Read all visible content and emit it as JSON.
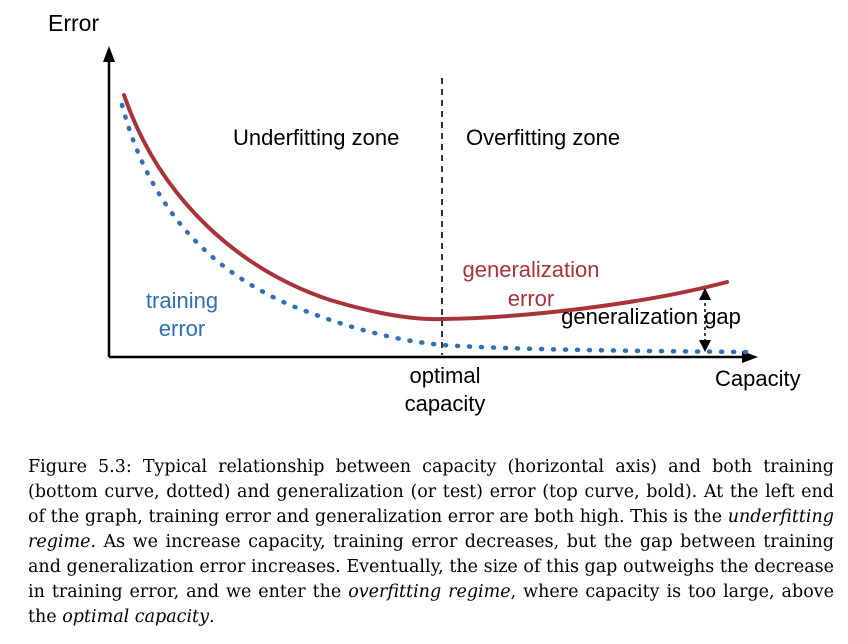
{
  "figure": {
    "y_axis_label": "Error",
    "x_axis_label": "Capacity",
    "zone_left": "Underfitting zone",
    "zone_right": "Overfitting zone",
    "training_label": [
      "training",
      "error"
    ],
    "generalization_label": [
      "generalization",
      "error"
    ],
    "gap_label": "generalization gap",
    "optimal_label": [
      "optimal",
      "capacity"
    ],
    "colors": {
      "training": "#2e6fb7",
      "generalization": "#a8343a",
      "axis": "#000000"
    }
  },
  "caption": {
    "lead": "Figure 5.3: Typical relationship between capacity (horizontal axis) and both training (bottom curve, dotted) and generalization (or test) error (top curve, bold). At the left end of the graph, training error and generalization error are both high. This is the ",
    "em1": "underfitting regime",
    "mid1": ". As we increase capacity, training error decreases, but the gap between training and generalization error increases. Eventually, the size of this gap outweighs the decrease in training error, and we enter the ",
    "em2": "overfitting regime",
    "mid2": ", where capacity is too large, above the ",
    "em3": "optimal capacity",
    "tail": "."
  }
}
